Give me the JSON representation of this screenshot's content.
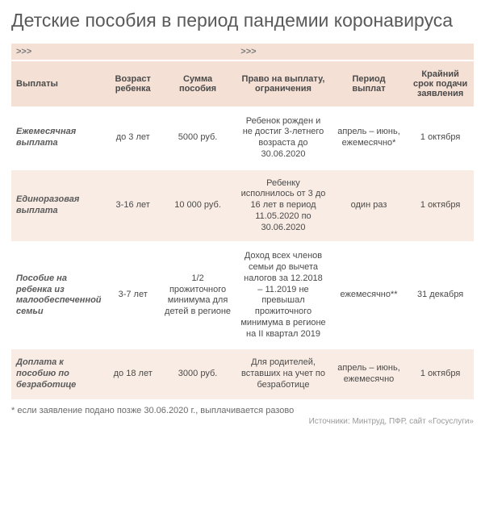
{
  "title": "Детские пособия в период пандемии коронавируса",
  "arrow": ">>>",
  "columns": [
    "Выплаты",
    "Возраст ребенка",
    "Сумма пособия",
    "Право на выплату, ограничения",
    "Период выплат",
    "Крайний срок подачи заявления"
  ],
  "rows": [
    {
      "c0": "Ежемесячная выплата",
      "c1": "до 3 лет",
      "c2": "5000 руб.",
      "c3": "Ребенок рожден и не достиг 3-летнего возраста до 30.06.2020",
      "c4": "апрель – июнь, ежемесячно*",
      "c5": "1 октября"
    },
    {
      "c0": "Единоразовая выплата",
      "c1": "3-16 лет",
      "c2": "10 000 руб.",
      "c3": "Ребенку исполнилось от 3 до 16 лет в период 11.05.2020 по 30.06.2020",
      "c4": "один раз",
      "c5": "1 октября"
    },
    {
      "c0": "Пособие на ребенка из малообеспеченной семьи",
      "c1": "3-7 лет",
      "c2": "1/2 прожиточного минимума для детей в регионе",
      "c3": "Доход всех членов семьи до вычета налогов за 12.2018 – 11.2019 не превышал прожиточного минимума в регионе на II квартал 2019",
      "c4": "ежемесячно**",
      "c5": "31 декабря"
    },
    {
      "c0": "Доплата к пособию по безработице",
      "c1": "до 18 лет",
      "c2": "3000 руб.",
      "c3": "Для родителей, вставших на учет по безработице",
      "c4": "апрель – июнь, ежемесячно",
      "c5": "1 октября"
    }
  ],
  "footnote": "* если заявление подано позже 30.06.2020 г., выплачивается разово",
  "sources": "Источники: Минтруд, ПФР, сайт «Госуслуги»",
  "colors": {
    "header_bg": "#f4e0d5",
    "row_even_bg": "#f9ece4",
    "row_odd_bg": "#ffffff",
    "text": "#4a4a4a",
    "title": "#5a5a5a",
    "sources": "#9a9a9a"
  }
}
